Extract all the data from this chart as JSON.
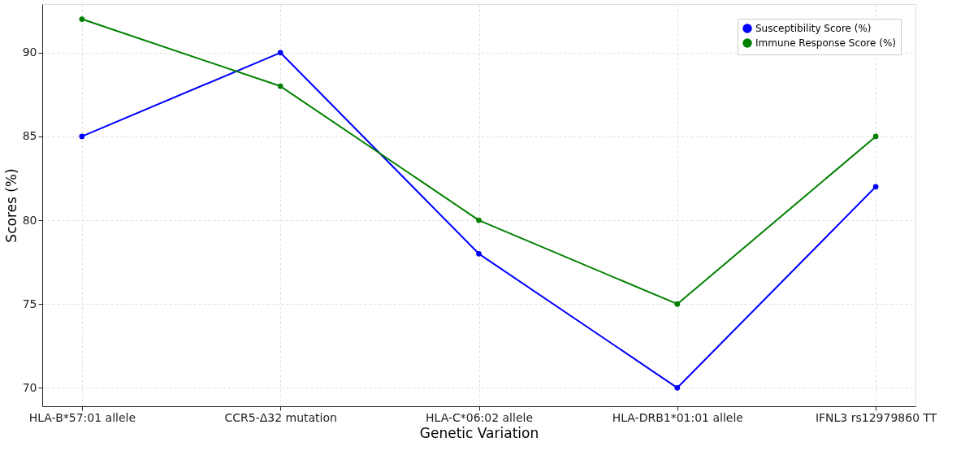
{
  "chart_data": {
    "type": "line",
    "xlabel": "Genetic Variation",
    "ylabel": "Scores (%)",
    "categories": [
      "HLA-B*57:01 allele",
      "CCR5-Δ32 mutation",
      "HLA-C*06:02 allele",
      "HLA-DRB1*01:01 allele",
      "IFNL3 rs12979860 TT"
    ],
    "series": [
      {
        "name": "Susceptibility Score (%)",
        "color": "#0000ff",
        "values": [
          85,
          90,
          78,
          70,
          82
        ]
      },
      {
        "name": "Immune Response Score (%)",
        "color": "#008000",
        "values": [
          92,
          88,
          80,
          75,
          85
        ]
      }
    ],
    "ylim": [
      68.9,
      92.9
    ],
    "yticks": [
      70,
      75,
      80,
      85,
      90
    ],
    "grid": true,
    "legend": "top right",
    "marker": "circle",
    "line_style": "solid"
  }
}
